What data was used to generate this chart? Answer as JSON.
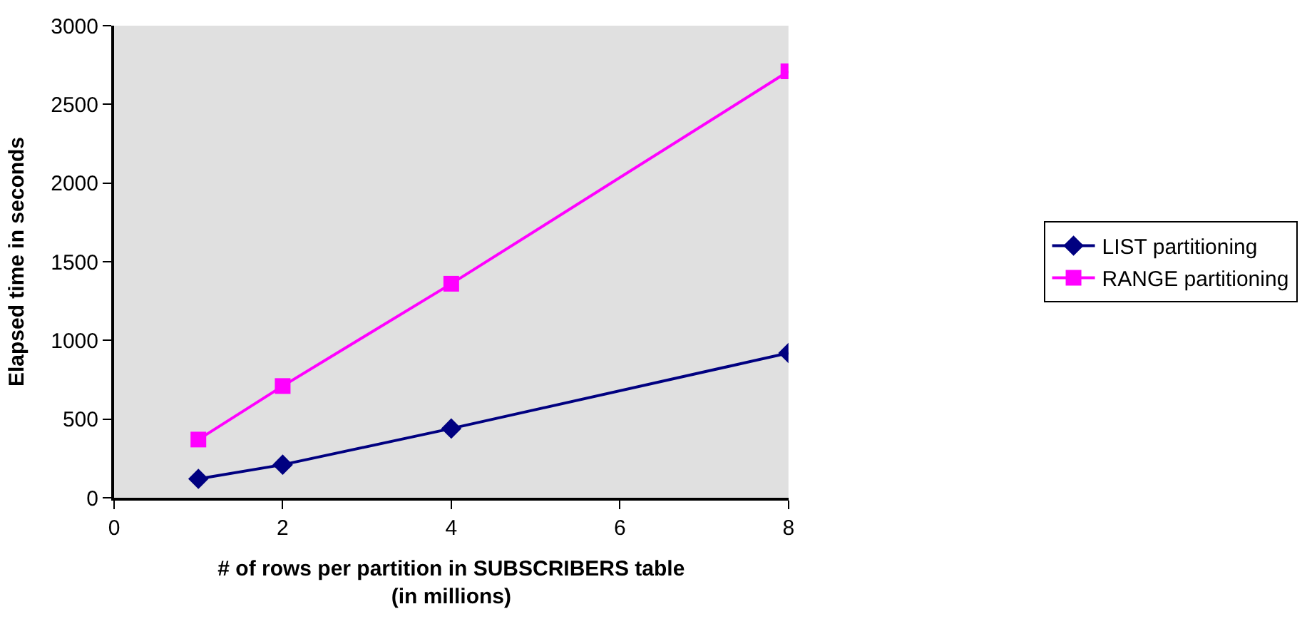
{
  "chart_data": {
    "type": "line",
    "xlabel": "# of rows per partition in SUBSCRIBERS table\n(in millions)",
    "ylabel": "Elapsed time in seconds",
    "x": [
      1,
      2,
      4,
      8
    ],
    "series": [
      {
        "name": "LIST partitioning",
        "color": "#000080",
        "values": [
          120,
          210,
          440,
          920
        ],
        "marker": "diamond"
      },
      {
        "name": "RANGE partitioning",
        "color": "#ff00ff",
        "values": [
          370,
          710,
          1360,
          2710
        ],
        "marker": "square"
      }
    ],
    "xlim": [
      0,
      8
    ],
    "xticks": [
      0,
      2,
      4,
      6,
      8
    ],
    "ylim": [
      0,
      3000
    ],
    "yticks": [
      0,
      500,
      1000,
      1500,
      2000,
      2500,
      3000
    ],
    "grid": false,
    "legend": "right",
    "line_style": "solid"
  }
}
